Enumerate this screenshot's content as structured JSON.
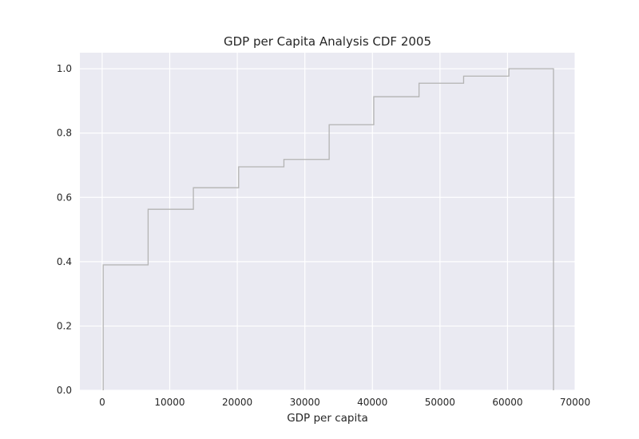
{
  "chart_data": {
    "type": "line",
    "title": "GDP per Capita Analysis CDF 2005",
    "xlabel": "GDP per capita",
    "ylabel": "",
    "xlim": [
      -3300,
      70000
    ],
    "ylim": [
      0,
      1.05
    ],
    "x_ticks": [
      0,
      10000,
      20000,
      30000,
      40000,
      50000,
      60000,
      70000
    ],
    "x_tick_labels": [
      "0",
      "10000",
      "20000",
      "30000",
      "40000",
      "50000",
      "60000",
      "70000"
    ],
    "y_ticks": [
      0.0,
      0.2,
      0.4,
      0.6,
      0.8,
      1.0
    ],
    "y_tick_labels": [
      "0.0",
      "0.2",
      "0.4",
      "0.6",
      "0.8",
      "1.0"
    ],
    "grid": true,
    "series": [
      {
        "style": "step",
        "color": "#b3b3b3",
        "bin_edges": [
          150,
          6800,
          13500,
          20200,
          26900,
          33600,
          40200,
          46900,
          53500,
          60200,
          66800
        ],
        "cumulative": [
          0.39,
          0.563,
          0.63,
          0.695,
          0.718,
          0.826,
          0.913,
          0.955,
          0.977,
          1.0
        ]
      }
    ]
  },
  "colors": {
    "plot_background": "#eaeaf2",
    "grid": "#ffffff",
    "line": "#b3b3b3",
    "text": "#262626"
  }
}
